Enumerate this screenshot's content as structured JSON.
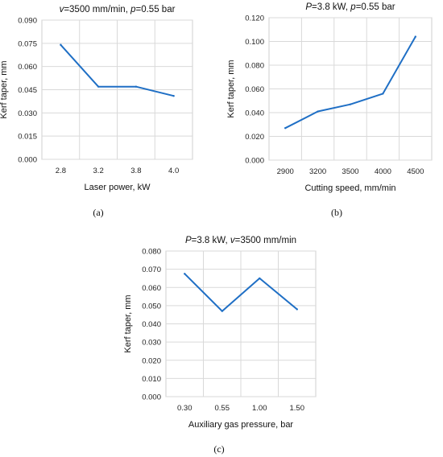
{
  "colors": {
    "series": "#1f6fc5",
    "grid": "#d9d9d9"
  },
  "chart_data": [
    {
      "id": "a",
      "type": "line",
      "title_parts": [
        {
          "text": "v",
          "italic": true
        },
        {
          "text": "=3500 mm/min, "
        },
        {
          "text": "p",
          "italic": true
        },
        {
          "text": "=0.55 bar"
        }
      ],
      "xlabel": "Laser power, kW",
      "ylabel": "Kerf taper, mm",
      "categories": [
        "2.8",
        "3.2",
        "3.8",
        "4.0"
      ],
      "values": [
        0.074,
        0.047,
        0.047,
        0.041
      ],
      "ylim": [
        0,
        0.09
      ],
      "yticks": [
        "0.000",
        "0.015",
        "0.030",
        "0.045",
        "0.060",
        "0.075",
        "0.090"
      ],
      "grid": true,
      "caption": "(a)"
    },
    {
      "id": "b",
      "type": "line",
      "title_parts": [
        {
          "text": "P",
          "italic": true
        },
        {
          "text": "=3.8 kW, "
        },
        {
          "text": "p",
          "italic": true
        },
        {
          "text": "=0.55 bar"
        }
      ],
      "xlabel": "Cutting speed, mm/min",
      "ylabel": "Kerf taper, mm",
      "categories": [
        "2900",
        "3200",
        "3500",
        "4000",
        "4500"
      ],
      "values": [
        0.027,
        0.041,
        0.047,
        0.056,
        0.104
      ],
      "ylim": [
        0,
        0.12
      ],
      "yticks": [
        "0.000",
        "0.020",
        "0.040",
        "0.060",
        "0.080",
        "0.100",
        "0.120"
      ],
      "grid": true,
      "caption": "(b)"
    },
    {
      "id": "c",
      "type": "line",
      "title_parts": [
        {
          "text": "P",
          "italic": true
        },
        {
          "text": "=3.8 kW, "
        },
        {
          "text": "v",
          "italic": true
        },
        {
          "text": "=3500 mm/min"
        }
      ],
      "xlabel": "Auxiliary gas pressure, bar",
      "ylabel": "Kerf taper, mm",
      "categories": [
        "0.30",
        "0.55",
        "1.00",
        "1.50"
      ],
      "values": [
        0.0675,
        0.047,
        0.065,
        0.048
      ],
      "ylim": [
        0,
        0.08
      ],
      "yticks": [
        "0.000",
        "0.010",
        "0.020",
        "0.030",
        "0.040",
        "0.050",
        "0.060",
        "0.070",
        "0.080"
      ],
      "grid": true,
      "caption": "(c)"
    }
  ]
}
